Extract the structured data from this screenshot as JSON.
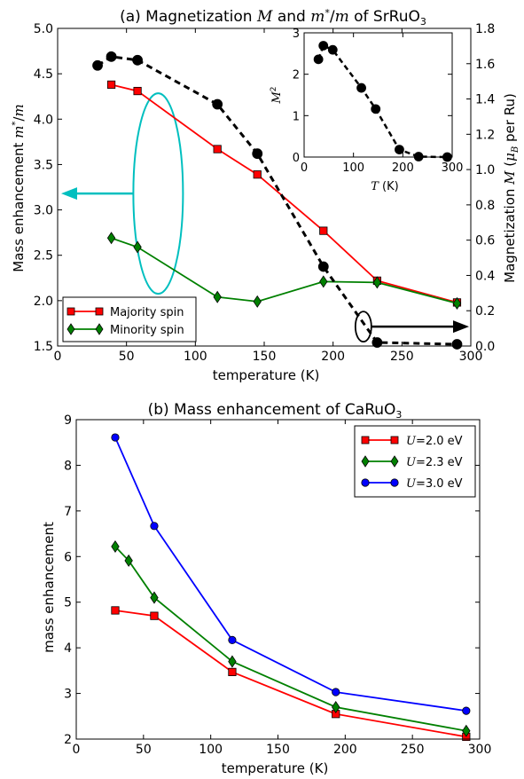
{
  "chart_data": [
    {
      "type": "line",
      "title": "(a) Magnetization M and m*/m of SrRuO3",
      "title_parts": {
        "pre": "(a) Magnetization ",
        "m1": "M",
        "mid": " and ",
        "m2": "m",
        "star": "*",
        "slash": "/",
        "m3": "m",
        "post": " of SrRuO",
        "sub": "3"
      },
      "xlabel": "temperature (K)",
      "ylabel_left": {
        "pre": "Mass enhancement ",
        "m": "m",
        "star": "*",
        "slash": "/",
        "m2": "m"
      },
      "ylabel_right": {
        "pre": "Magnetization ",
        "M": "M",
        "paren": " (",
        "mu": "μ",
        "B": "B",
        "post": " per Ru)"
      },
      "xlim": [
        0,
        300
      ],
      "ylim_left": [
        1.5,
        5.0
      ],
      "ylim_right": [
        0.0,
        1.8
      ],
      "x_ticks": [
        "0",
        "50",
        "100",
        "150",
        "200",
        "250",
        "300"
      ],
      "y_ticks_left": [
        "1.5",
        "2.0",
        "2.5",
        "3.0",
        "3.5",
        "4.0",
        "4.5",
        "5.0"
      ],
      "y_ticks_right": [
        "0.0",
        "0.2",
        "0.4",
        "0.6",
        "0.8",
        "1.0",
        "1.2",
        "1.4",
        "1.6",
        "1.8"
      ],
      "legend_position": "bottom-left",
      "series": [
        {
          "name": "Majority spin",
          "color": "#ff0000",
          "marker": "square",
          "axis": "left",
          "x": [
            39,
            58,
            116,
            145,
            193,
            232,
            290
          ],
          "y": [
            4.38,
            4.31,
            3.67,
            3.39,
            2.77,
            2.22,
            1.98
          ]
        },
        {
          "name": "Minority spin",
          "color": "#008000",
          "marker": "diamond",
          "axis": "left",
          "x": [
            39,
            58,
            116,
            145,
            193,
            232,
            290
          ],
          "y": [
            2.69,
            2.59,
            2.04,
            1.99,
            2.21,
            2.2,
            1.97
          ]
        },
        {
          "name": "",
          "color": "#000000",
          "marker": "circle",
          "axis": "right",
          "dashed": true,
          "x": [
            29,
            39,
            58,
            116,
            145,
            193,
            232,
            290
          ],
          "y": [
            1.59,
            1.64,
            1.62,
            1.37,
            1.09,
            0.45,
            0.02,
            0.01
          ]
        }
      ],
      "inset": {
        "xlabel": {
          "T": "T",
          "unit": " (K)"
        },
        "ylabel": {
          "M": "M",
          "sup": "2"
        },
        "xlim": [
          0,
          300
        ],
        "ylim": [
          0,
          3
        ],
        "x_ticks": [
          "0",
          "100",
          "200",
          "300"
        ],
        "y_ticks": [
          "0",
          "1",
          "2",
          "3"
        ],
        "x": [
          29,
          39,
          58,
          116,
          145,
          193,
          232,
          290
        ],
        "y": [
          2.36,
          2.69,
          2.59,
          1.67,
          1.16,
          0.18,
          0.01,
          0.0
        ]
      },
      "annotations": [
        "cyan ellipse around majority/minority curves with arrow pointing to left axis",
        "black ellipse around magnetization curve with arrow pointing to right axis"
      ]
    },
    {
      "type": "line",
      "title": "(b) Mass enhancement of CaRuO3",
      "title_parts": {
        "pre": "(b) Mass enhancement of CaRuO",
        "sub": "3"
      },
      "xlabel": "temperature (K)",
      "ylabel": "mass enhancement",
      "xlim": [
        0,
        300
      ],
      "ylim": [
        2,
        9
      ],
      "x_ticks": [
        "0",
        "50",
        "100",
        "150",
        "200",
        "250",
        "300"
      ],
      "y_ticks": [
        "2",
        "3",
        "4",
        "5",
        "6",
        "7",
        "8",
        "9"
      ],
      "legend_position": "top-right",
      "series": [
        {
          "name": "U=2.0 eV",
          "name_parts": {
            "U": "U",
            "val": "=2.0",
            "unit": " eV"
          },
          "color": "#ff0000",
          "marker": "square",
          "x": [
            29,
            58,
            116,
            193,
            290
          ],
          "y": [
            4.82,
            4.7,
            3.47,
            2.55,
            2.05
          ]
        },
        {
          "name": "U=2.3 eV",
          "name_parts": {
            "U": "U",
            "val": "=2.3",
            "unit": " eV"
          },
          "color": "#008000",
          "marker": "diamond",
          "x": [
            29,
            39,
            58,
            116,
            193,
            290
          ],
          "y": [
            6.22,
            5.91,
            5.1,
            3.7,
            2.7,
            2.18
          ]
        },
        {
          "name": "U=3.0 eV",
          "name_parts": {
            "U": "U",
            "val": "=3.0",
            "unit": " eV"
          },
          "color": "#0000ff",
          "marker": "circle",
          "x": [
            29,
            58,
            116,
            193,
            290
          ],
          "y": [
            8.61,
            6.67,
            4.17,
            3.03,
            2.62
          ]
        }
      ]
    }
  ]
}
